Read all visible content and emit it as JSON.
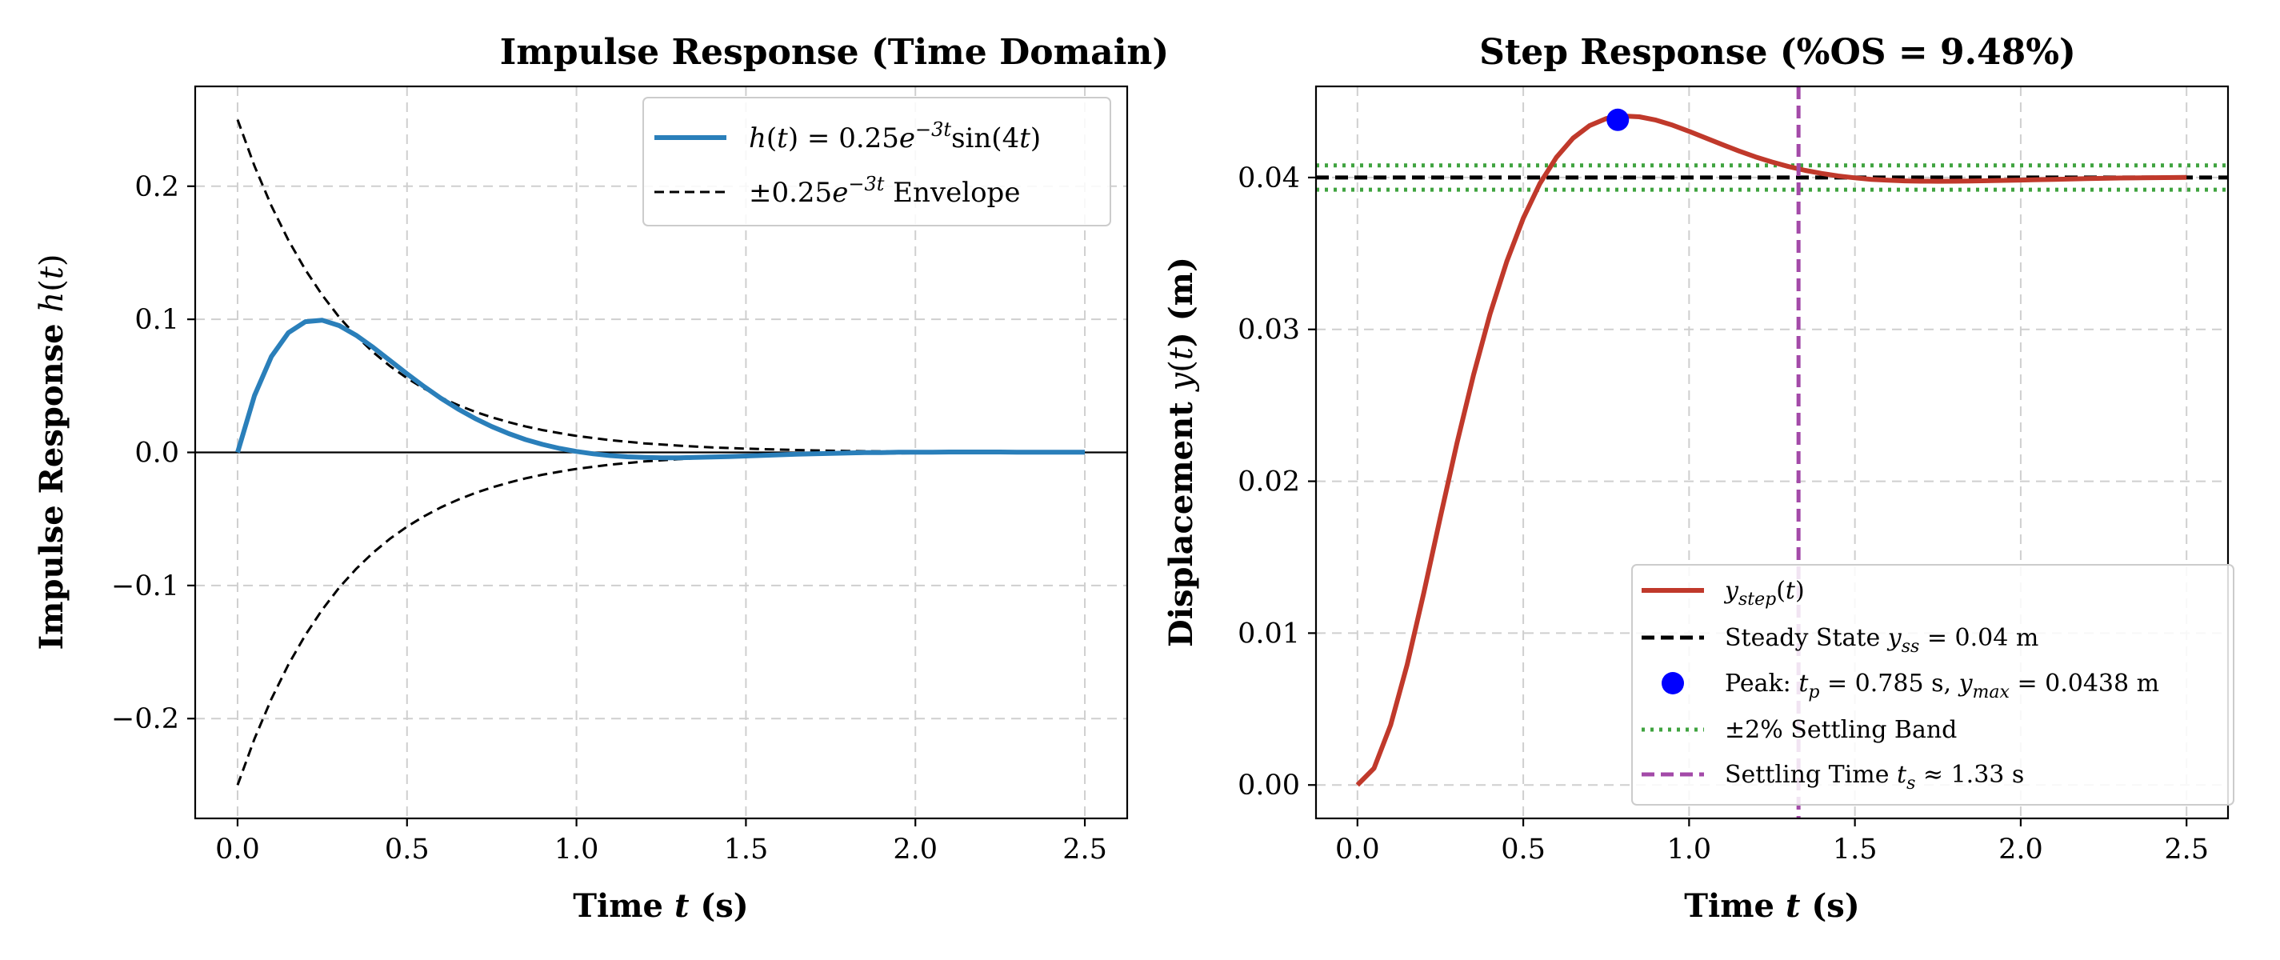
{
  "chart_data": [
    {
      "type": "line",
      "title": "Impulse Response (Time Domain)",
      "xlabel_parts": [
        "Time ",
        "t",
        " (s)"
      ],
      "ylabel_parts": [
        "Impulse Response ",
        "h",
        "(",
        "t",
        ")"
      ],
      "xlim": [
        -0.125,
        2.625
      ],
      "ylim": [
        -0.275,
        0.275
      ],
      "xticks": [
        0.0,
        0.5,
        1.0,
        1.5,
        2.0,
        2.5
      ],
      "xtick_labels": [
        "0.0",
        "0.5",
        "1.0",
        "1.5",
        "2.0",
        "2.5"
      ],
      "yticks": [
        -0.2,
        -0.1,
        0.0,
        0.1,
        0.2
      ],
      "ytick_labels": [
        "−0.2",
        "−0.1",
        "0.0",
        "0.1",
        "0.2"
      ],
      "grid": true,
      "legend_position": "top-right",
      "zero_line": true,
      "series": [
        {
          "name": "h(t) = 0.25e^{−3t}sin(4t)",
          "color": "#2a7fba",
          "style": "solid",
          "x": [
            0.0,
            0.05,
            0.1,
            0.15,
            0.2,
            0.25,
            0.3,
            0.35,
            0.4,
            0.45,
            0.5,
            0.55,
            0.6,
            0.65,
            0.7,
            0.75,
            0.8,
            0.85,
            0.9,
            0.95,
            1.0,
            1.05,
            1.1,
            1.15,
            1.2,
            1.25,
            1.3,
            1.35,
            1.4,
            1.45,
            1.5,
            1.55,
            1.6,
            1.65,
            1.7,
            1.75,
            1.8,
            1.85,
            1.9,
            1.95,
            2.0,
            2.05,
            2.1,
            2.15,
            2.2,
            2.25,
            2.3,
            2.35,
            2.4,
            2.45,
            2.5
          ],
          "y": [
            0.0,
            0.0427,
            0.0721,
            0.0899,
            0.0982,
            0.0993,
            0.0953,
            0.088,
            0.0789,
            0.069,
            0.059,
            0.0495,
            0.0407,
            0.0327,
            0.0256,
            0.0194,
            0.0141,
            0.0096,
            0.006,
            0.003,
            0.0007,
            -0.0011,
            -0.0024,
            -0.0033,
            -0.0038,
            -0.004,
            -0.004,
            -0.0038,
            -0.0035,
            -0.0031,
            -0.0027,
            -0.0022,
            -0.0018,
            -0.0014,
            -0.001,
            -0.0007,
            -0.0004,
            -0.0002,
            -0.0001,
            0.0001,
            0.0002,
            0.0002,
            0.0003,
            0.0003,
            0.0003,
            0.0003,
            0.0002,
            0.0002,
            0.0002,
            0.0001,
            0.0001
          ]
        },
        {
          "name": "±0.25e^{−3t} Envelope",
          "color": "#000000",
          "style": "dashed",
          "x": [
            0.0,
            0.05,
            0.1,
            0.15,
            0.2,
            0.25,
            0.3,
            0.35,
            0.4,
            0.45,
            0.5,
            0.55,
            0.6,
            0.65,
            0.7,
            0.75,
            0.8,
            0.85,
            0.9,
            0.95,
            1.0,
            1.1,
            1.2,
            1.3,
            1.4,
            1.5,
            1.6,
            1.7,
            1.8,
            1.9,
            2.0,
            2.1,
            2.2,
            2.3,
            2.4,
            2.5
          ],
          "y": [
            0.25,
            0.2152,
            0.1852,
            0.1594,
            0.1372,
            0.1181,
            0.1016,
            0.0875,
            0.0753,
            0.0648,
            0.0558,
            0.048,
            0.0413,
            0.0356,
            0.0306,
            0.0264,
            0.0227,
            0.0195,
            0.0168,
            0.0145,
            0.0124,
            0.0092,
            0.0068,
            0.0051,
            0.0037,
            0.0028,
            0.0021,
            0.0015,
            0.0011,
            0.0008,
            0.0006,
            0.0005,
            0.0003,
            0.0003,
            0.0002,
            0.0001
          ],
          "mirror": true
        }
      ],
      "legend": [
        {
          "text_parts": [
            "h",
            "(",
            "t",
            ") = 0.25",
            "e",
            "−3t",
            "sin(4",
            "t",
            ")"
          ]
        },
        {
          "text_parts": [
            "±0.25",
            "e",
            "−3t",
            " Envelope"
          ]
        }
      ]
    },
    {
      "type": "line",
      "title": "Step Response (%OS = 9.48%)",
      "xlabel_parts": [
        "Time ",
        "t",
        " (s)"
      ],
      "ylabel_parts": [
        "Displacement ",
        "y",
        "(",
        "t",
        ") (m)"
      ],
      "xlim": [
        -0.125,
        2.625
      ],
      "ylim": [
        -0.0022,
        0.046
      ],
      "xticks": [
        0.0,
        0.5,
        1.0,
        1.5,
        2.0,
        2.5
      ],
      "xtick_labels": [
        "0.0",
        "0.5",
        "1.0",
        "1.5",
        "2.0",
        "2.5"
      ],
      "yticks": [
        0.0,
        0.01,
        0.02,
        0.03,
        0.04
      ],
      "ytick_labels": [
        "0.00",
        "0.01",
        "0.02",
        "0.03",
        "0.04"
      ],
      "grid": true,
      "legend_position": "bottom-right",
      "series": [
        {
          "name": "y_step(t)",
          "color": "#c0392b",
          "style": "solid",
          "x": [
            0.0,
            0.05,
            0.1,
            0.15,
            0.2,
            0.25,
            0.3,
            0.35,
            0.4,
            0.45,
            0.5,
            0.55,
            0.6,
            0.65,
            0.7,
            0.75,
            0.8,
            0.85,
            0.9,
            0.95,
            1.0,
            1.05,
            1.1,
            1.15,
            1.2,
            1.25,
            1.3,
            1.35,
            1.4,
            1.45,
            1.5,
            1.55,
            1.6,
            1.65,
            1.7,
            1.75,
            1.8,
            1.85,
            1.9,
            1.95,
            2.0,
            2.1,
            2.2,
            2.3,
            2.4,
            2.5
          ],
          "y": [
            0.0,
            0.0011,
            0.00395,
            0.00793,
            0.01264,
            0.01765,
            0.02251,
            0.027,
            0.03102,
            0.03446,
            0.03732,
            0.0396,
            0.04133,
            0.04259,
            0.04342,
            0.04388,
            0.04405,
            0.044,
            0.04378,
            0.04345,
            0.04304,
            0.04261,
            0.04217,
            0.04175,
            0.04136,
            0.04102,
            0.04072,
            0.04047,
            0.04027,
            0.0401,
            0.03998,
            0.03988,
            0.03982,
            0.03978,
            0.03976,
            0.03975,
            0.03976,
            0.03977,
            0.03979,
            0.03981,
            0.03983,
            0.03988,
            0.03993,
            0.03997,
            0.03999,
            0.04001
          ]
        },
        {
          "name": "Steady State",
          "color": "#000000",
          "style": "dashed",
          "hline": 0.04
        },
        {
          "name": "Peak",
          "color": "#0000ff",
          "style": "marker",
          "x": [
            0.785
          ],
          "y": [
            0.0438
          ]
        },
        {
          "name": "±2% Settling Band",
          "color": "#3fa33f",
          "style": "dotted",
          "hlines": [
            0.0408,
            0.0392
          ]
        },
        {
          "name": "Settling Time",
          "color": "#a34aa8",
          "style": "dashed",
          "vline": 1.33
        }
      ],
      "legend": [
        {
          "text_parts": [
            "y",
            "step",
            "(",
            "t",
            ")"
          ]
        },
        {
          "text_parts": [
            "Steady State ",
            "y",
            "ss",
            " = 0.04 m"
          ]
        },
        {
          "text_parts": [
            "Peak: ",
            "t",
            "p",
            " = 0.785 s, ",
            "y",
            "max",
            " = 0.0438 m"
          ]
        },
        {
          "text_parts": [
            "±2% Settling Band"
          ]
        },
        {
          "text_parts": [
            "Settling Time ",
            "t",
            "s",
            " ≈ 1.33 s"
          ]
        }
      ]
    }
  ]
}
